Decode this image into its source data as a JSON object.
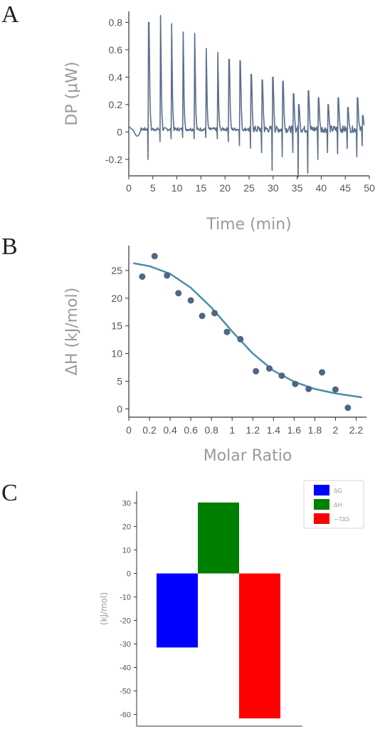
{
  "panels": {
    "a": "A",
    "b": "B",
    "c": "C"
  },
  "chart_data": [
    {
      "type": "line",
      "panel": "A",
      "title": "",
      "xlabel": "Time (min)",
      "ylabel": "DP (μW)",
      "xlim": [
        0,
        50
      ],
      "ylim": [
        -0.32,
        0.88
      ],
      "xticks": [
        0,
        5,
        10,
        15,
        20,
        25,
        30,
        35,
        40,
        45,
        50
      ],
      "yticks": [
        -0.2,
        0,
        0.2,
        0.4,
        0.6,
        0.8
      ],
      "color": "#5a6f8c",
      "baseline": 0.02,
      "injections": [
        {
          "t": 4.0,
          "peak": 0.8,
          "dip": -0.2
        },
        {
          "t": 6.4,
          "peak": 0.85,
          "dip": -0.07
        },
        {
          "t": 8.7,
          "peak": 0.79,
          "dip": -0.05
        },
        {
          "t": 11.1,
          "peak": 0.73,
          "dip": -0.04
        },
        {
          "t": 13.5,
          "peak": 0.72,
          "dip": -0.05
        },
        {
          "t": 15.9,
          "peak": 0.61,
          "dip": -0.04
        },
        {
          "t": 18.3,
          "peak": 0.58,
          "dip": -0.05
        },
        {
          "t": 20.7,
          "peak": 0.53,
          "dip": -0.07
        },
        {
          "t": 23.0,
          "peak": 0.52,
          "dip": -0.1
        },
        {
          "t": 25.3,
          "peak": 0.42,
          "dip": -0.12
        },
        {
          "t": 27.6,
          "peak": 0.38,
          "dip": -0.15
        },
        {
          "t": 29.8,
          "peak": 0.4,
          "dip": -0.28
        },
        {
          "t": 31.9,
          "peak": 0.37,
          "dip": -0.18
        },
        {
          "t": 34.1,
          "peak": 0.28,
          "dip": -0.15
        },
        {
          "t": 35.2,
          "peak": 0.2,
          "dip": -0.33
        },
        {
          "t": 37.2,
          "peak": 0.3,
          "dip": -0.3
        },
        {
          "t": 39.3,
          "peak": 0.25,
          "dip": -0.2
        },
        {
          "t": 41.3,
          "peak": 0.2,
          "dip": -0.15
        },
        {
          "t": 43.4,
          "peak": 0.25,
          "dip": -0.16
        },
        {
          "t": 45.4,
          "peak": 0.18,
          "dip": -0.12
        },
        {
          "t": 47.4,
          "peak": 0.25,
          "dip": -0.18
        },
        {
          "t": 48.5,
          "peak": 0.12,
          "dip": -0.1
        }
      ]
    },
    {
      "type": "scatter",
      "panel": "B",
      "title": "",
      "xlabel": "Molar Ratio",
      "ylabel": "ΔH (kJ/mol)",
      "xlim": [
        0,
        2.3
      ],
      "ylim": [
        -1.5,
        29.5
      ],
      "xticks": [
        0,
        0.2,
        0.4,
        0.6,
        0.8,
        1,
        1.2,
        1.4,
        1.6,
        1.8,
        2,
        2.2
      ],
      "yticks": [
        0,
        5,
        10,
        15,
        20,
        25
      ],
      "points_color": "#4f6684",
      "fit_color": "#4a8fa8",
      "x": [
        0.13,
        0.25,
        0.37,
        0.48,
        0.6,
        0.71,
        0.83,
        0.95,
        1.08,
        1.23,
        1.36,
        1.48,
        1.61,
        1.74,
        1.87,
        2.0,
        2.12
      ],
      "y": [
        23.9,
        27.6,
        24.1,
        20.9,
        19.6,
        16.8,
        17.3,
        13.9,
        12.6,
        6.8,
        7.3,
        6.0,
        4.5,
        3.6,
        6.6,
        3.5,
        0.2
      ],
      "fit": [
        [
          0.05,
          26.3
        ],
        [
          0.2,
          25.8
        ],
        [
          0.4,
          24.4
        ],
        [
          0.6,
          21.9
        ],
        [
          0.8,
          18.3
        ],
        [
          1.0,
          14.0
        ],
        [
          1.2,
          10.0
        ],
        [
          1.4,
          6.9
        ],
        [
          1.6,
          4.9
        ],
        [
          1.8,
          3.6
        ],
        [
          2.0,
          2.8
        ],
        [
          2.25,
          2.1
        ]
      ]
    },
    {
      "type": "bar",
      "panel": "C",
      "title": "",
      "xlabel": "",
      "ylabel": "(kJ/mol)",
      "ylim": [
        -65,
        35
      ],
      "yticks": [
        30,
        20,
        10,
        0,
        -10,
        -20,
        -30,
        -40,
        -50,
        -60
      ],
      "series": [
        {
          "name": "ΔG",
          "value": -31.5,
          "color": "#0000ff"
        },
        {
          "name": "ΔH",
          "value": 30.2,
          "color": "#008000"
        },
        {
          "name": "−TΔS",
          "value": -61.7,
          "color": "#ff0000"
        }
      ],
      "legend_position": "top-right"
    }
  ]
}
